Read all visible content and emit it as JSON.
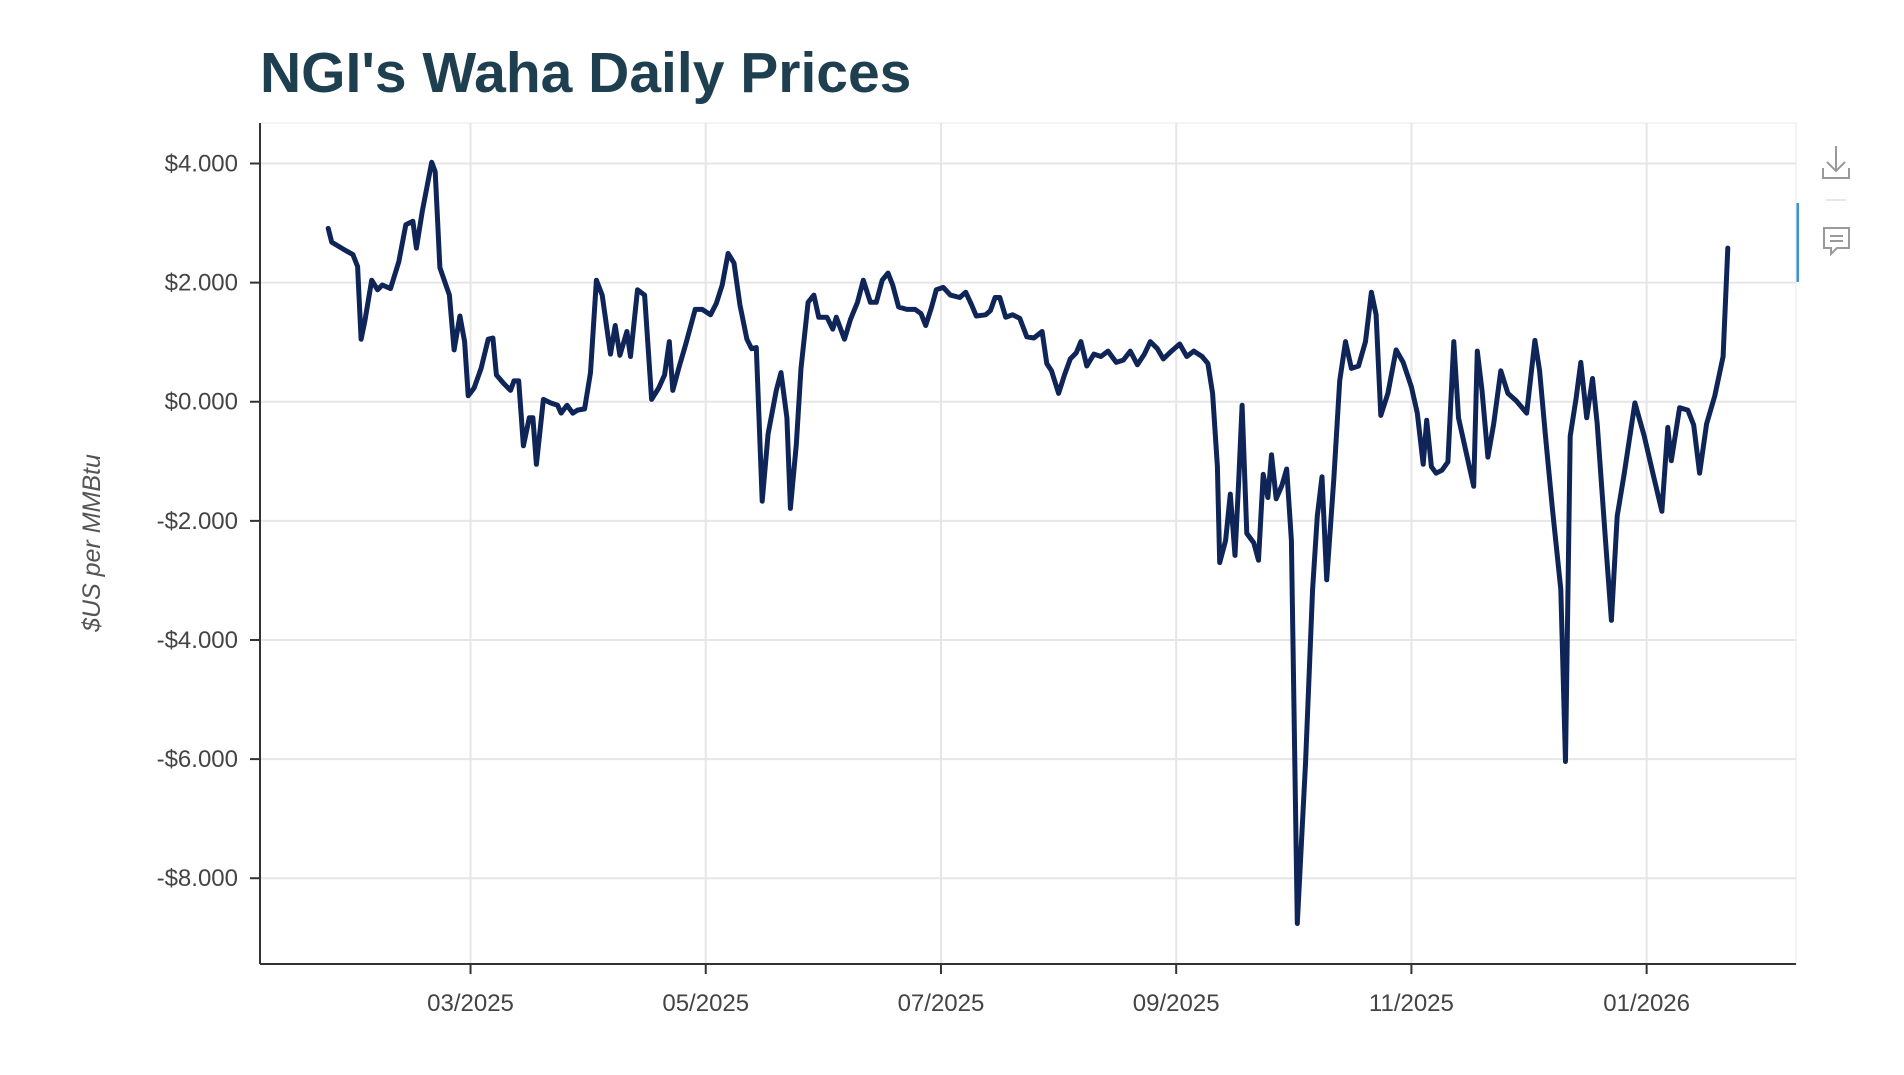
{
  "chart_data": {
    "type": "line",
    "title": "NGI's Waha Daily Prices",
    "y_label": "$US per MMBtu",
    "grid": true,
    "xlim": [
      1.21,
      14.27
    ],
    "ylim": [
      -9.44,
      4.68
    ],
    "xticks": [
      {
        "value": 3,
        "label": "03/2025"
      },
      {
        "value": 5,
        "label": "05/2025"
      },
      {
        "value": 7,
        "label": "07/2025"
      },
      {
        "value": 9,
        "label": "09/2025"
      },
      {
        "value": 11,
        "label": "11/2025"
      },
      {
        "value": 13,
        "label": "01/2026"
      }
    ],
    "yticks": [
      {
        "value": 4,
        "label": "$4.000"
      },
      {
        "value": 2,
        "label": "$2.000"
      },
      {
        "value": 0,
        "label": "$0.000"
      },
      {
        "value": -2,
        "label": "-$2.000"
      },
      {
        "value": -4,
        "label": "-$4.000"
      },
      {
        "value": -6,
        "label": "-$6.000"
      },
      {
        "value": -8,
        "label": "-$8.000"
      }
    ],
    "series": [
      {
        "color": "#0f2557",
        "x": [
          1.79,
          1.82,
          1.92,
          2.0,
          2.04,
          2.07,
          2.1,
          2.16,
          2.21,
          2.25,
          2.32,
          2.39,
          2.45,
          2.51,
          2.54,
          2.59,
          2.67,
          2.7,
          2.74,
          2.82,
          2.86,
          2.91,
          2.95,
          2.98,
          3.03,
          3.09,
          3.15,
          3.19,
          3.22,
          3.28,
          3.34,
          3.37,
          3.41,
          3.45,
          3.5,
          3.53,
          3.56,
          3.62,
          3.68,
          3.74,
          3.77,
          3.82,
          3.87,
          3.91,
          3.97,
          4.02,
          4.07,
          4.12,
          4.19,
          4.23,
          4.27,
          4.33,
          4.36,
          4.42,
          4.48,
          4.54,
          4.6,
          4.65,
          4.69,
          4.72,
          4.77,
          4.83,
          4.91,
          4.97,
          5.04,
          5.09,
          5.14,
          5.19,
          5.24,
          5.29,
          5.35,
          5.39,
          5.43,
          5.48,
          5.53,
          5.6,
          5.64,
          5.69,
          5.72,
          5.77,
          5.81,
          5.87,
          5.92,
          5.96,
          6.03,
          6.08,
          6.11,
          6.18,
          6.23,
          6.29,
          6.34,
          6.4,
          6.45,
          6.5,
          6.55,
          6.59,
          6.64,
          6.71,
          6.78,
          6.83,
          6.87,
          6.92,
          6.96,
          7.02,
          7.08,
          7.16,
          7.21,
          7.26,
          7.3,
          7.38,
          7.42,
          7.46,
          7.5,
          7.55,
          7.61,
          7.67,
          7.73,
          7.79,
          7.86,
          7.9,
          7.94,
          8.0,
          8.05,
          8.1,
          8.15,
          8.19,
          8.24,
          8.3,
          8.36,
          8.42,
          8.49,
          8.55,
          8.61,
          8.67,
          8.73,
          8.78,
          8.84,
          8.89,
          8.96,
          9.03,
          9.09,
          9.15,
          9.22,
          9.27,
          9.31,
          9.35,
          9.37,
          9.42,
          9.46,
          9.5,
          9.53,
          9.56,
          9.6,
          9.66,
          9.7,
          9.74,
          9.78,
          9.81,
          9.85,
          9.9,
          9.94,
          9.98,
          10.03,
          10.1,
          10.16,
          10.2,
          10.24,
          10.28,
          10.34,
          10.39,
          10.44,
          10.49,
          10.55,
          10.61,
          10.66,
          10.7,
          10.74,
          10.8,
          10.87,
          10.93,
          11.0,
          11.05,
          11.1,
          11.13,
          11.17,
          11.21,
          11.26,
          11.31,
          11.36,
          11.4,
          11.47,
          11.53,
          11.56,
          11.6,
          11.65,
          11.7,
          11.76,
          11.82,
          11.89,
          11.98,
          12.05,
          12.09,
          12.14,
          12.2,
          12.27,
          12.31,
          12.35,
          12.4,
          12.44,
          12.49,
          12.54,
          12.58,
          12.65,
          12.7,
          12.75,
          12.81,
          12.9,
          12.98,
          13.06,
          13.13,
          13.18,
          13.21,
          13.28,
          13.35,
          13.4,
          13.45,
          13.51,
          13.58,
          13.65,
          13.69
        ],
        "values": [
          2.91,
          2.68,
          2.56,
          2.47,
          2.27,
          1.05,
          1.34,
          2.04,
          1.88,
          1.96,
          1.9,
          2.35,
          2.97,
          3.03,
          2.58,
          3.2,
          4.02,
          3.86,
          2.25,
          1.79,
          0.87,
          1.44,
          1.01,
          0.1,
          0.23,
          0.56,
          1.05,
          1.07,
          0.45,
          0.31,
          0.19,
          0.35,
          0.35,
          -0.74,
          -0.27,
          -0.27,
          -1.05,
          0.04,
          -0.02,
          -0.06,
          -0.19,
          -0.06,
          -0.19,
          -0.14,
          -0.12,
          0.49,
          2.04,
          1.79,
          0.8,
          1.28,
          0.78,
          1.18,
          0.76,
          1.88,
          1.79,
          0.04,
          0.23,
          0.45,
          1.01,
          0.19,
          0.56,
          0.97,
          1.55,
          1.55,
          1.46,
          1.65,
          1.96,
          2.49,
          2.33,
          1.63,
          1.05,
          0.89,
          0.91,
          -1.67,
          -0.54,
          0.19,
          0.49,
          -0.27,
          -1.79,
          -0.72,
          0.56,
          1.67,
          1.79,
          1.42,
          1.42,
          1.22,
          1.42,
          1.05,
          1.38,
          1.67,
          2.04,
          1.67,
          1.67,
          2.04,
          2.16,
          1.96,
          1.59,
          1.55,
          1.55,
          1.48,
          1.28,
          1.59,
          1.88,
          1.92,
          1.79,
          1.75,
          1.84,
          1.63,
          1.44,
          1.46,
          1.53,
          1.75,
          1.75,
          1.42,
          1.46,
          1.4,
          1.09,
          1.07,
          1.18,
          0.64,
          0.52,
          0.14,
          0.45,
          0.72,
          0.82,
          1.01,
          0.6,
          0.8,
          0.76,
          0.85,
          0.66,
          0.7,
          0.85,
          0.62,
          0.8,
          1.01,
          0.89,
          0.72,
          0.85,
          0.97,
          0.76,
          0.85,
          0.76,
          0.64,
          0.14,
          -1.09,
          -2.7,
          -2.33,
          -1.55,
          -2.58,
          -1.4,
          -0.06,
          -2.21,
          -2.37,
          -2.66,
          -1.22,
          -1.61,
          -0.89,
          -1.63,
          -1.4,
          -1.13,
          -2.33,
          -8.76,
          -6.04,
          -3.15,
          -1.92,
          -1.26,
          -2.99,
          -1.3,
          0.35,
          1.01,
          0.56,
          0.6,
          1.01,
          1.84,
          1.46,
          -0.23,
          0.14,
          0.87,
          0.66,
          0.25,
          -0.19,
          -1.05,
          -0.31,
          -1.09,
          -1.2,
          -1.15,
          -1.01,
          1.01,
          -0.27,
          -0.89,
          -1.42,
          0.85,
          0.19,
          -0.93,
          -0.37,
          0.52,
          0.14,
          0.02,
          -0.19,
          1.03,
          0.52,
          -0.58,
          -1.81,
          -3.15,
          -6.04,
          -0.58,
          0.06,
          0.66,
          -0.27,
          0.39,
          -0.37,
          -2.33,
          -3.67,
          -1.92,
          -1.2,
          -0.02,
          -0.58,
          -1.26,
          -1.84,
          -0.43,
          -0.99,
          -0.1,
          -0.14,
          -0.39,
          -1.2,
          -0.37,
          0.1,
          0.76,
          2.58
        ]
      }
    ]
  }
}
